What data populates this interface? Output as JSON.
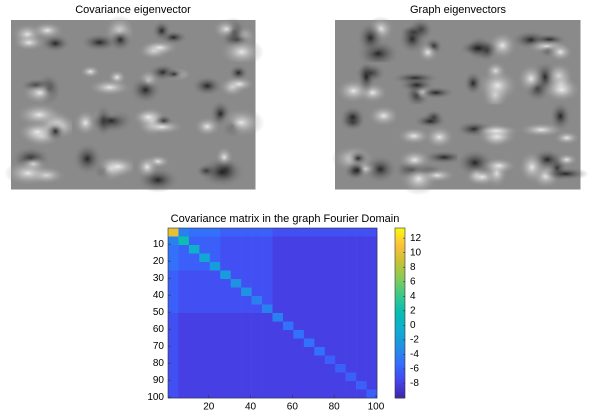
{
  "chart_data": [
    {
      "type": "image",
      "title": "Covariance eigenvector"
    },
    {
      "type": "image",
      "title": "Graph eigenvectors"
    },
    {
      "type": "heatmap",
      "title": "Covariance matrix in the graph Fourier Domain",
      "colormap": "parula",
      "xlim": [
        0.5,
        100.5
      ],
      "ylim": [
        0.5,
        100.5
      ],
      "xticks": [
        20,
        40,
        60,
        80,
        100
      ],
      "yticks": [
        10,
        20,
        30,
        40,
        50,
        60,
        70,
        80,
        90,
        100
      ],
      "clim": [
        -10,
        13.4
      ],
      "cticks": [
        12,
        10,
        8,
        6,
        4,
        2,
        0,
        -2,
        -4,
        -6,
        -8
      ],
      "z": [
        [
          10,
          -4,
          -5,
          -5,
          -5,
          -6,
          -6,
          -6,
          -6,
          -6,
          -7,
          -7,
          -7,
          -7,
          -7,
          -7,
          -7,
          -7,
          -7,
          -7
        ],
        [
          -4,
          2,
          -6,
          -6,
          -6,
          -7,
          -7,
          -7,
          -7,
          -7,
          -8,
          -8,
          -8,
          -8,
          -8,
          -8,
          -8,
          -8,
          -8,
          -8
        ],
        [
          -5,
          -6,
          0,
          -6,
          -6,
          -7,
          -7,
          -7,
          -7,
          -7,
          -8,
          -8,
          -8,
          -8,
          -8,
          -8,
          -8,
          -8,
          -8,
          -8
        ],
        [
          -5,
          -6,
          -6,
          -1,
          -6,
          -7,
          -7,
          -7,
          -7,
          -7,
          -8,
          -8,
          -8,
          -8,
          -8,
          -8,
          -8,
          -8,
          -8,
          -8
        ],
        [
          -5,
          -6,
          -6,
          -6,
          -2,
          -7,
          -7,
          -7,
          -7,
          -7,
          -8,
          -8,
          -8,
          -8,
          -8,
          -8,
          -8,
          -8,
          -8,
          -8
        ],
        [
          -6,
          -7,
          -7,
          -7,
          -7,
          -2,
          -7,
          -7,
          -7,
          -7,
          -8,
          -8,
          -8,
          -8,
          -8,
          -8,
          -8,
          -8,
          -8,
          -8
        ],
        [
          -6,
          -7,
          -7,
          -7,
          -7,
          -7,
          -3,
          -7,
          -7,
          -7,
          -8,
          -8,
          -8,
          -8,
          -8,
          -8,
          -8,
          -8,
          -8,
          -8
        ],
        [
          -6,
          -7,
          -7,
          -7,
          -7,
          -7,
          -7,
          -3,
          -7,
          -7,
          -8,
          -8,
          -8,
          -8,
          -8,
          -8,
          -8,
          -8,
          -8,
          -8
        ],
        [
          -6,
          -7,
          -7,
          -7,
          -7,
          -7,
          -7,
          -7,
          -4,
          -7,
          -8,
          -8,
          -8,
          -8,
          -8,
          -8,
          -8,
          -8,
          -8,
          -8
        ],
        [
          -6,
          -7,
          -7,
          -7,
          -7,
          -7,
          -7,
          -7,
          -7,
          -4,
          -8,
          -8,
          -8,
          -8,
          -8,
          -8,
          -8,
          -8,
          -8,
          -8
        ],
        [
          -7,
          -8,
          -8,
          -8,
          -8,
          -8,
          -8,
          -8,
          -8,
          -8,
          -4,
          -8,
          -8,
          -8,
          -8,
          -8,
          -8,
          -8,
          -8,
          -8
        ],
        [
          -7,
          -8,
          -8,
          -8,
          -8,
          -8,
          -8,
          -8,
          -8,
          -8,
          -8,
          -5,
          -8,
          -8,
          -8,
          -8,
          -8,
          -8,
          -8,
          -8
        ],
        [
          -7,
          -8,
          -8,
          -8,
          -8,
          -8,
          -8,
          -8,
          -8,
          -8,
          -8,
          -8,
          -5,
          -8,
          -8,
          -8,
          -8,
          -8,
          -8,
          -8
        ],
        [
          -7,
          -8,
          -8,
          -8,
          -8,
          -8,
          -8,
          -8,
          -8,
          -8,
          -8,
          -8,
          -8,
          -5,
          -8,
          -8,
          -8,
          -8,
          -8,
          -8
        ],
        [
          -7,
          -8,
          -8,
          -8,
          -8,
          -8,
          -8,
          -8,
          -8,
          -8,
          -8,
          -8,
          -8,
          -8,
          -5,
          -8,
          -8,
          -8,
          -8,
          -8
        ],
        [
          -7,
          -8,
          -8,
          -8,
          -8,
          -8,
          -8,
          -8,
          -8,
          -8,
          -8,
          -8,
          -8,
          -8,
          -8,
          -6,
          -8,
          -8,
          -8,
          -8
        ],
        [
          -7,
          -8,
          -8,
          -8,
          -8,
          -8,
          -8,
          -8,
          -8,
          -8,
          -8,
          -8,
          -8,
          -8,
          -8,
          -8,
          -6,
          -8,
          -8,
          -8
        ],
        [
          -7,
          -8,
          -8,
          -8,
          -8,
          -8,
          -8,
          -8,
          -8,
          -8,
          -8,
          -8,
          -8,
          -8,
          -8,
          -8,
          -8,
          -6,
          -8,
          -8
        ],
        [
          -7,
          -8,
          -8,
          -8,
          -8,
          -8,
          -8,
          -8,
          -8,
          -8,
          -8,
          -8,
          -8,
          -8,
          -8,
          -8,
          -8,
          -8,
          -6,
          -8
        ],
        [
          -7,
          -8,
          -8,
          -8,
          -8,
          -8,
          -8,
          -8,
          -8,
          -8,
          -8,
          -8,
          -8,
          -8,
          -8,
          -8,
          -8,
          -8,
          -8,
          -6
        ]
      ]
    }
  ]
}
